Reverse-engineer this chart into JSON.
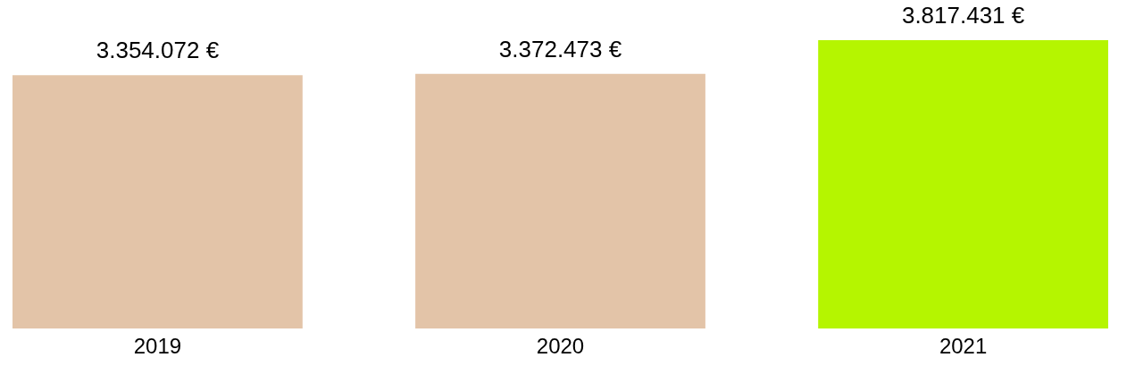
{
  "chart_data": {
    "type": "bar",
    "categories": [
      "2019",
      "2020",
      "2021"
    ],
    "values": [
      3354072,
      3372473,
      3817431
    ],
    "colors": [
      "#e3c4a8",
      "#e3c4a8",
      "#b5f500"
    ],
    "value_labels": [
      "3.354.072 €",
      "3.372.473 €",
      "3.817.431 €"
    ],
    "grid": false,
    "tick_labels": "x"
  }
}
